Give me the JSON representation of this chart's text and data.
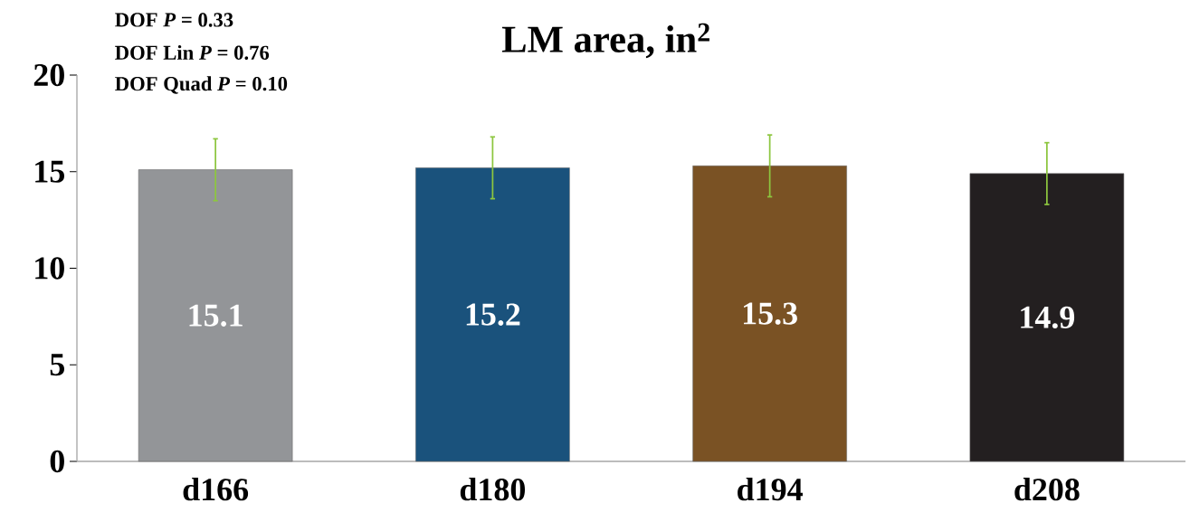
{
  "chart_data": {
    "type": "bar",
    "title": "LM area, in$^{2}$",
    "categories": [
      "d166",
      "d180",
      "d194",
      "d208"
    ],
    "values": [
      15.1,
      15.2,
      15.3,
      14.9
    ],
    "colors": [
      "#939598",
      "#1a527c",
      "#7a5224",
      "#231f20"
    ],
    "errors": [
      1.6,
      1.6,
      1.6,
      1.6
    ],
    "data_labels": true,
    "ylim": [
      0,
      20
    ],
    "yticks": [
      0,
      5,
      10,
      15,
      20
    ],
    "grid": false,
    "annotations": [
      "DOF *P* = 0.33",
      "DOF Lin  *P* = 0.76",
      "DOF Quad *P* = 0.10"
    ]
  }
}
